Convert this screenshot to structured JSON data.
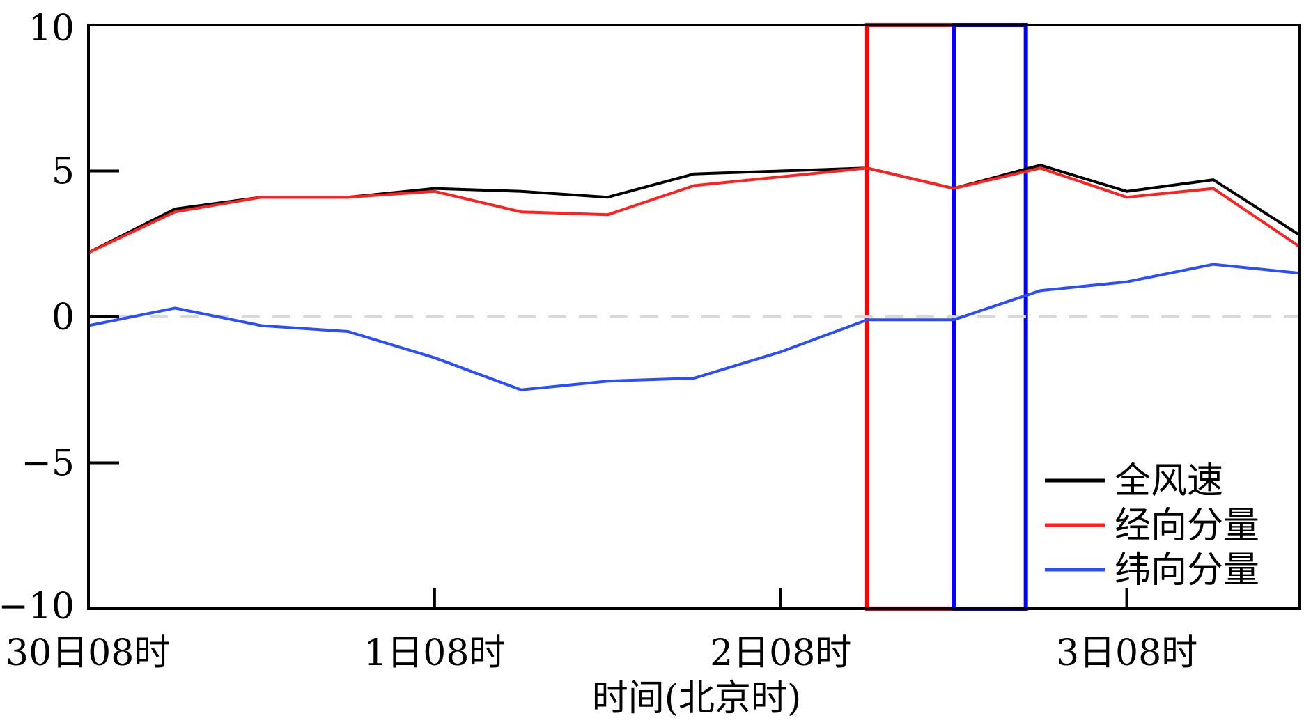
{
  "chart_data": {
    "type": "line",
    "title": "",
    "xlabel": "时间(北京时)",
    "ylabel": "",
    "ylim": [
      -10,
      10
    ],
    "yticks": [
      10,
      5,
      0,
      -5,
      -10
    ],
    "ytick_labels": [
      "10",
      "5",
      "0",
      "−5",
      "−10"
    ],
    "xlim": [
      0,
      84
    ],
    "x_tick_positions": [
      0,
      24,
      48,
      72
    ],
    "x_tick_labels": [
      "30日08时",
      "1日08时",
      "2日08时",
      "3日08时"
    ],
    "x": [
      0,
      6,
      12,
      18,
      24,
      30,
      36,
      42,
      48,
      54,
      60,
      66,
      72,
      78,
      84
    ],
    "series": [
      {
        "name": "全风速",
        "color": "#000000",
        "values": [
          2.2,
          3.7,
          4.1,
          4.1,
          4.4,
          4.3,
          4.1,
          4.9,
          5.0,
          5.1,
          4.4,
          5.2,
          4.3,
          4.7,
          2.8
        ]
      },
      {
        "name": "经向分量",
        "color": "#ff2020",
        "values": [
          2.2,
          3.6,
          4.1,
          4.1,
          4.3,
          3.6,
          3.5,
          4.5,
          4.8,
          5.1,
          4.4,
          5.1,
          4.1,
          4.4,
          2.4
        ]
      },
      {
        "name": "纬向分量",
        "color": "#2a4dff",
        "values": [
          -0.3,
          0.3,
          -0.3,
          -0.5,
          -1.4,
          -2.5,
          -2.2,
          -2.1,
          -1.2,
          -0.1,
          -0.1,
          0.9,
          1.2,
          1.8,
          1.5
        ]
      }
    ],
    "zero_line": {
      "value": 0,
      "style": "dashed",
      "color": "#d9d9d9"
    },
    "highlight_boxes": [
      {
        "color": "#ff0000",
        "x_start": 54,
        "x_end": 60
      },
      {
        "color": "#0000ff",
        "x_start": 60,
        "x_end": 65
      }
    ],
    "legend": {
      "placement": "bottom-right",
      "entries": [
        "全风速",
        "经向分量",
        "纬向分量"
      ]
    },
    "grid": false
  }
}
